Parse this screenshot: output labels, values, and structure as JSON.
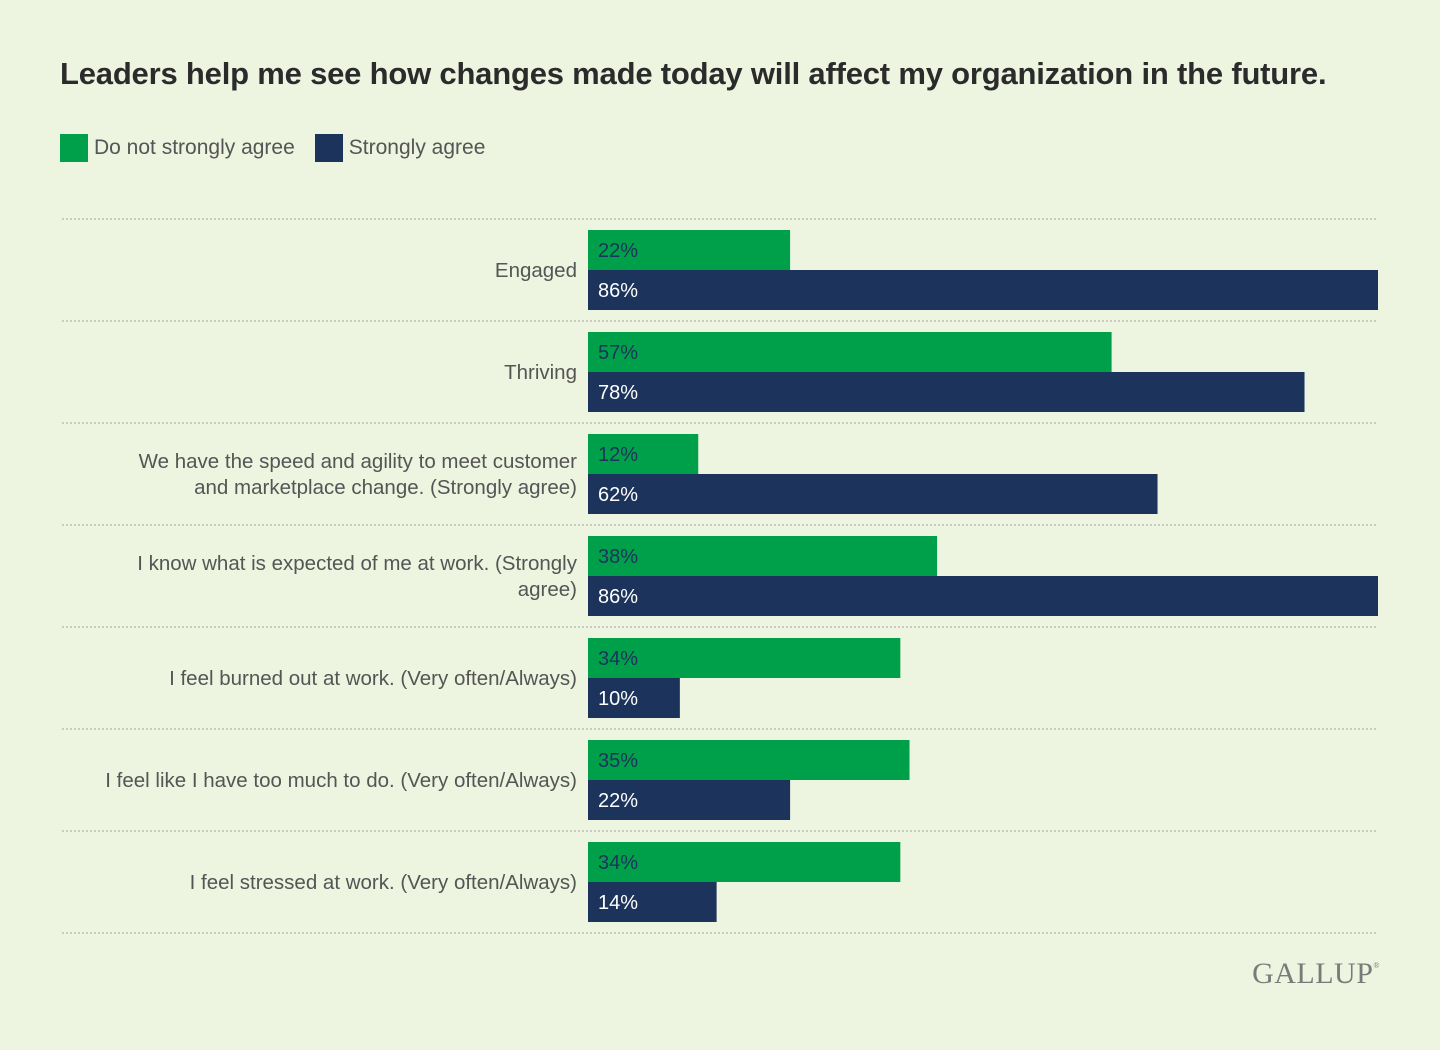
{
  "title": "Leaders help me see how changes made today will affect my organization in the future.",
  "brand": "GALLUP",
  "colors": {
    "do_not_strongly_agree": "#00a04b",
    "strongly_agree": "#1c335c",
    "label_on_green": "#1c335c",
    "label_on_navy": "#ffffff",
    "background": "#edf4df",
    "divider": "#b5b5b5"
  },
  "chart_data": {
    "type": "bar",
    "orientation": "horizontal",
    "title": "Leaders help me see how changes made today will affect my organization in the future.",
    "xlim": [
      0,
      86
    ],
    "grid": false,
    "legend_position": "top-left",
    "value_suffix": "%",
    "categories": [
      [
        "Engaged"
      ],
      [
        "Thriving"
      ],
      [
        "We have the speed and agility to meet customer",
        "and marketplace change. (Strongly agree)"
      ],
      [
        "I know what is expected of me at work. (Strongly",
        "agree)"
      ],
      [
        "I feel burned out at work. (Very often/Always)"
      ],
      [
        "I feel like I have too much to do. (Very often/Always)"
      ],
      [
        "I feel stressed at work. (Very often/Always)"
      ]
    ],
    "series": [
      {
        "name": "Do not strongly agree",
        "color": "#00a04b",
        "values": [
          22,
          57,
          12,
          38,
          34,
          35,
          34
        ],
        "labels": [
          "22%",
          "57%",
          "12%",
          "38%",
          "34%",
          "35%",
          "34%"
        ]
      },
      {
        "name": "Strongly agree",
        "color": "#1c335c",
        "values": [
          86,
          78,
          62,
          86,
          10,
          22,
          14
        ],
        "labels": [
          "86%",
          "78%",
          "62%",
          "86%",
          "10%",
          "22%",
          "14%"
        ]
      }
    ]
  }
}
